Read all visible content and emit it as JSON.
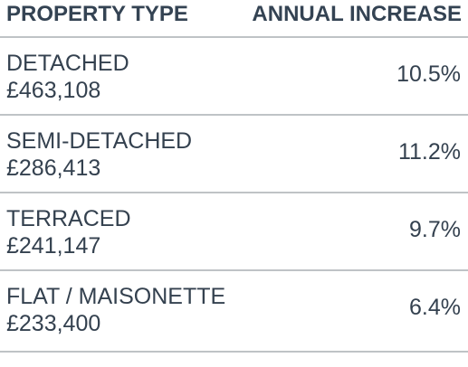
{
  "header": {
    "left": "PROPERTY TYPE",
    "right": "ANNUAL INCREASE"
  },
  "rows": [
    {
      "type": "DETACHED",
      "price": "£463,108",
      "increase": "10.5%"
    },
    {
      "type": "SEMI-DETACHED",
      "price": "£286,413",
      "increase": "11.2%"
    },
    {
      "type": "TERRACED",
      "price": "£241,147",
      "increase": "9.7%"
    },
    {
      "type": "FLAT / MAISONETTE",
      "price": "£233,400",
      "increase": "6.4%"
    }
  ],
  "colors": {
    "text": "#34414f",
    "divider": "#bfc3c6"
  }
}
